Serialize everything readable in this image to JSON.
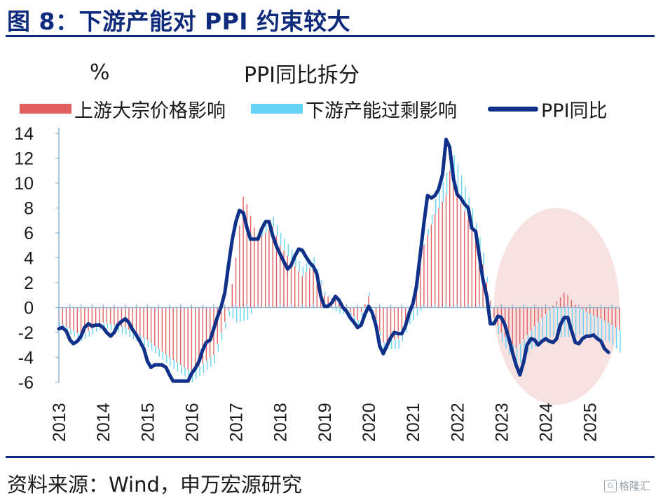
{
  "figure_title": "图 8：下游产能对 PPI 约束较大",
  "source_text": "资料来源：Wind，申万宏源研究",
  "watermark_text": "格隆汇",
  "watermark_icon": "G",
  "colors": {
    "title": "#0d2a7c",
    "upstream_bar": "#e15f5f",
    "downstream_bar": "#66d4f5",
    "ppi_line": "#10318a",
    "highlight_ellipse": "#f3c9c9",
    "axis": "#8eb4d6"
  },
  "chart_data": {
    "type": "bar",
    "title": "PPI同比拆分",
    "ylabel": "%",
    "ylim": [
      -6,
      14
    ],
    "yticks": [
      14,
      12,
      10,
      8,
      6,
      4,
      2,
      0,
      -2,
      -4,
      -6
    ],
    "xlim": [
      2013.0,
      2025.67
    ],
    "xticks": [
      "2013",
      "2014",
      "2015",
      "2016",
      "2017",
      "2018",
      "2019",
      "2020",
      "2021",
      "2022",
      "2023",
      "2024",
      "2025"
    ],
    "grid": false,
    "legend_position": "top",
    "legend": [
      {
        "name": "上游大宗价格影响",
        "kind": "bar"
      },
      {
        "name": "下游产能过剩影响",
        "kind": "bar"
      },
      {
        "name": "PPI同比",
        "kind": "line"
      }
    ],
    "highlight": {
      "shape": "ellipse",
      "x_range": [
        2022.83,
        2025.67
      ],
      "y_range": [
        -7.8,
        8
      ]
    },
    "series": [
      {
        "name": "上游大宗价格影响",
        "type": "bar",
        "points": [
          [
            2013.0,
            -1.2
          ],
          [
            2013.5,
            -2.2
          ],
          [
            2014.0,
            -1.2
          ],
          [
            2014.5,
            -1.6
          ],
          [
            2015.0,
            -2.6
          ],
          [
            2015.5,
            -4.0
          ],
          [
            2016.0,
            -5.2
          ],
          [
            2016.5,
            -3.8
          ],
          [
            2016.83,
            -0.3
          ],
          [
            2017.0,
            4.0
          ],
          [
            2017.08,
            6.5
          ],
          [
            2017.17,
            9.0
          ],
          [
            2017.25,
            8.3
          ],
          [
            2017.5,
            5.5
          ],
          [
            2017.83,
            6.5
          ],
          [
            2018.0,
            5.0
          ],
          [
            2018.5,
            2.5
          ],
          [
            2018.75,
            3.5
          ],
          [
            2019.0,
            1.0
          ],
          [
            2019.33,
            0.5
          ],
          [
            2019.75,
            -1.0
          ],
          [
            2020.0,
            0.9
          ],
          [
            2020.33,
            -2.8
          ],
          [
            2020.67,
            -2.5
          ],
          [
            2021.0,
            0.3
          ],
          [
            2021.25,
            5.0
          ],
          [
            2021.5,
            7.5
          ],
          [
            2021.75,
            9.0
          ],
          [
            2021.83,
            11.0
          ],
          [
            2022.0,
            9.0
          ],
          [
            2022.33,
            6.5
          ],
          [
            2022.58,
            3.5
          ],
          [
            2022.83,
            -0.8
          ],
          [
            2023.0,
            -2.0
          ],
          [
            2023.33,
            -3.3
          ],
          [
            2023.67,
            -1.8
          ],
          [
            2024.0,
            -0.5
          ],
          [
            2024.33,
            0.8
          ],
          [
            2024.42,
            1.2
          ],
          [
            2024.5,
            1.0
          ],
          [
            2024.67,
            0.2
          ],
          [
            2025.0,
            -0.5
          ],
          [
            2025.42,
            -1.2
          ],
          [
            2025.67,
            -1.8
          ]
        ]
      },
      {
        "name": "下游产能过剩影响",
        "type": "bar",
        "points": [
          [
            2013.0,
            -0.4
          ],
          [
            2013.5,
            -0.5
          ],
          [
            2014.0,
            -0.4
          ],
          [
            2014.5,
            -0.6
          ],
          [
            2015.0,
            -0.6
          ],
          [
            2015.5,
            -0.7
          ],
          [
            2016.0,
            -0.8
          ],
          [
            2016.5,
            -0.7
          ],
          [
            2016.83,
            -0.5
          ],
          [
            2017.0,
            -1.2
          ],
          [
            2017.25,
            -1.0
          ],
          [
            2017.5,
            0.5
          ],
          [
            2018.0,
            1.0
          ],
          [
            2018.5,
            0.8
          ],
          [
            2019.0,
            0.3
          ],
          [
            2019.33,
            -0.5
          ],
          [
            2019.75,
            -0.6
          ],
          [
            2020.0,
            0.3
          ],
          [
            2020.33,
            -0.6
          ],
          [
            2020.67,
            -0.8
          ],
          [
            2021.0,
            -1.0
          ],
          [
            2021.5,
            1.2
          ],
          [
            2022.0,
            2.5
          ],
          [
            2022.33,
            1.5
          ],
          [
            2022.58,
            1.0
          ],
          [
            2022.83,
            -0.6
          ],
          [
            2023.0,
            -0.8
          ],
          [
            2023.33,
            -1.5
          ],
          [
            2023.67,
            -1.5
          ],
          [
            2024.0,
            -2.2
          ],
          [
            2024.33,
            -2.4
          ],
          [
            2024.67,
            -2.3
          ],
          [
            2025.0,
            -1.9
          ],
          [
            2025.42,
            -1.5
          ],
          [
            2025.67,
            -1.8
          ]
        ]
      },
      {
        "name": "PPI同比",
        "type": "line",
        "points": [
          [
            2013.0,
            -1.7
          ],
          [
            2013.08,
            -1.6
          ],
          [
            2013.17,
            -1.9
          ],
          [
            2013.25,
            -2.6
          ],
          [
            2013.33,
            -2.9
          ],
          [
            2013.42,
            -2.7
          ],
          [
            2013.5,
            -2.3
          ],
          [
            2013.58,
            -1.6
          ],
          [
            2013.67,
            -1.3
          ],
          [
            2013.75,
            -1.5
          ],
          [
            2013.83,
            -1.4
          ],
          [
            2013.92,
            -1.4
          ],
          [
            2014.0,
            -1.6
          ],
          [
            2014.08,
            -2.0
          ],
          [
            2014.17,
            -2.3
          ],
          [
            2014.25,
            -2.0
          ],
          [
            2014.33,
            -1.4
          ],
          [
            2014.42,
            -1.1
          ],
          [
            2014.5,
            -0.9
          ],
          [
            2014.58,
            -1.2
          ],
          [
            2014.67,
            -1.8
          ],
          [
            2014.75,
            -2.2
          ],
          [
            2014.83,
            -2.7
          ],
          [
            2014.92,
            -3.3
          ],
          [
            2015.0,
            -4.3
          ],
          [
            2015.08,
            -4.8
          ],
          [
            2015.17,
            -4.6
          ],
          [
            2015.25,
            -4.6
          ],
          [
            2015.33,
            -4.6
          ],
          [
            2015.42,
            -4.8
          ],
          [
            2015.5,
            -5.4
          ],
          [
            2015.58,
            -5.9
          ],
          [
            2015.67,
            -5.9
          ],
          [
            2015.75,
            -5.9
          ],
          [
            2015.83,
            -5.9
          ],
          [
            2015.92,
            -5.9
          ],
          [
            2016.0,
            -5.3
          ],
          [
            2016.08,
            -4.9
          ],
          [
            2016.17,
            -4.3
          ],
          [
            2016.25,
            -3.4
          ],
          [
            2016.33,
            -2.8
          ],
          [
            2016.42,
            -2.6
          ],
          [
            2016.5,
            -1.7
          ],
          [
            2016.58,
            -0.8
          ],
          [
            2016.67,
            0.1
          ],
          [
            2016.75,
            1.2
          ],
          [
            2016.83,
            3.3
          ],
          [
            2016.92,
            5.5
          ],
          [
            2017.0,
            6.9
          ],
          [
            2017.08,
            7.8
          ],
          [
            2017.17,
            7.6
          ],
          [
            2017.25,
            6.4
          ],
          [
            2017.33,
            5.5
          ],
          [
            2017.42,
            5.5
          ],
          [
            2017.5,
            5.5
          ],
          [
            2017.58,
            6.3
          ],
          [
            2017.67,
            6.9
          ],
          [
            2017.75,
            6.9
          ],
          [
            2017.83,
            5.8
          ],
          [
            2017.92,
            4.9
          ],
          [
            2018.0,
            4.3
          ],
          [
            2018.08,
            3.7
          ],
          [
            2018.17,
            3.1
          ],
          [
            2018.25,
            3.4
          ],
          [
            2018.33,
            4.1
          ],
          [
            2018.42,
            4.7
          ],
          [
            2018.5,
            4.6
          ],
          [
            2018.58,
            4.1
          ],
          [
            2018.67,
            3.6
          ],
          [
            2018.75,
            3.3
          ],
          [
            2018.83,
            2.7
          ],
          [
            2018.92,
            0.9
          ],
          [
            2019.0,
            0.1
          ],
          [
            2019.08,
            0.1
          ],
          [
            2019.17,
            0.4
          ],
          [
            2019.25,
            0.9
          ],
          [
            2019.33,
            0.6
          ],
          [
            2019.42,
            0.0
          ],
          [
            2019.5,
            -0.3
          ],
          [
            2019.58,
            -0.8
          ],
          [
            2019.67,
            -1.2
          ],
          [
            2019.75,
            -1.6
          ],
          [
            2019.83,
            -1.4
          ],
          [
            2019.92,
            -0.5
          ],
          [
            2020.0,
            0.1
          ],
          [
            2020.08,
            -0.4
          ],
          [
            2020.17,
            -1.5
          ],
          [
            2020.25,
            -3.1
          ],
          [
            2020.33,
            -3.7
          ],
          [
            2020.42,
            -3.0
          ],
          [
            2020.5,
            -2.4
          ],
          [
            2020.58,
            -2.0
          ],
          [
            2020.67,
            -2.1
          ],
          [
            2020.75,
            -2.1
          ],
          [
            2020.83,
            -1.5
          ],
          [
            2020.92,
            -0.4
          ],
          [
            2021.0,
            0.3
          ],
          [
            2021.08,
            1.7
          ],
          [
            2021.17,
            4.4
          ],
          [
            2021.25,
            6.8
          ],
          [
            2021.33,
            9.0
          ],
          [
            2021.42,
            8.8
          ],
          [
            2021.5,
            9.0
          ],
          [
            2021.58,
            9.5
          ],
          [
            2021.67,
            10.7
          ],
          [
            2021.75,
            13.5
          ],
          [
            2021.83,
            12.9
          ],
          [
            2021.92,
            10.3
          ],
          [
            2022.0,
            9.1
          ],
          [
            2022.08,
            8.8
          ],
          [
            2022.17,
            8.3
          ],
          [
            2022.25,
            8.0
          ],
          [
            2022.33,
            6.4
          ],
          [
            2022.42,
            6.1
          ],
          [
            2022.5,
            4.2
          ],
          [
            2022.58,
            2.3
          ],
          [
            2022.67,
            0.9
          ],
          [
            2022.75,
            -1.3
          ],
          [
            2022.83,
            -1.3
          ],
          [
            2022.92,
            -0.7
          ],
          [
            2023.0,
            -0.8
          ],
          [
            2023.08,
            -1.4
          ],
          [
            2023.17,
            -2.5
          ],
          [
            2023.25,
            -3.6
          ],
          [
            2023.33,
            -4.6
          ],
          [
            2023.42,
            -5.4
          ],
          [
            2023.5,
            -4.4
          ],
          [
            2023.58,
            -3.0
          ],
          [
            2023.67,
            -2.5
          ],
          [
            2023.75,
            -2.6
          ],
          [
            2023.83,
            -3.0
          ],
          [
            2023.92,
            -2.7
          ],
          [
            2024.0,
            -2.5
          ],
          [
            2024.08,
            -2.7
          ],
          [
            2024.17,
            -2.8
          ],
          [
            2024.25,
            -2.5
          ],
          [
            2024.33,
            -1.4
          ],
          [
            2024.42,
            -0.8
          ],
          [
            2024.5,
            -0.8
          ],
          [
            2024.58,
            -1.8
          ],
          [
            2024.67,
            -2.8
          ],
          [
            2024.75,
            -2.9
          ],
          [
            2024.83,
            -2.5
          ],
          [
            2024.92,
            -2.3
          ],
          [
            2025.0,
            -2.3
          ],
          [
            2025.08,
            -2.2
          ],
          [
            2025.17,
            -2.5
          ],
          [
            2025.25,
            -2.7
          ],
          [
            2025.33,
            -3.3
          ],
          [
            2025.42,
            -3.6
          ]
        ]
      }
    ]
  }
}
